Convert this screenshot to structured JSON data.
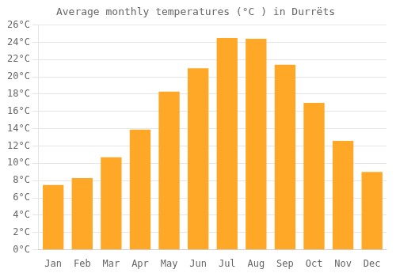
{
  "chart_data": {
    "type": "bar",
    "title": "Average monthly temperatures (°C ) in Durrëts",
    "categories": [
      "Jan",
      "Feb",
      "Mar",
      "Apr",
      "May",
      "Jun",
      "Jul",
      "Aug",
      "Sep",
      "Oct",
      "Nov",
      "Dec"
    ],
    "values": [
      7.5,
      8.3,
      10.7,
      13.9,
      18.3,
      21.0,
      24.5,
      24.4,
      21.4,
      17.0,
      12.6,
      9.0
    ],
    "color": "#FFA726",
    "ylim": [
      0,
      26
    ],
    "yticks": [
      {
        "value": 0,
        "label": "0°C"
      },
      {
        "value": 2,
        "label": "2°C"
      },
      {
        "value": 4,
        "label": "4°C"
      },
      {
        "value": 6,
        "label": "6°C"
      },
      {
        "value": 8,
        "label": "8°C"
      },
      {
        "value": 10,
        "label": "10°C"
      },
      {
        "value": 12,
        "label": "12°C"
      },
      {
        "value": 14,
        "label": "14°C"
      },
      {
        "value": 16,
        "label": "16°C"
      },
      {
        "value": 18,
        "label": "18°C"
      },
      {
        "value": 20,
        "label": "20°C"
      },
      {
        "value": 22,
        "label": "22°C"
      },
      {
        "value": 24,
        "label": "24°C"
      },
      {
        "value": 26,
        "label": "26°C"
      }
    ],
    "grid": true
  }
}
